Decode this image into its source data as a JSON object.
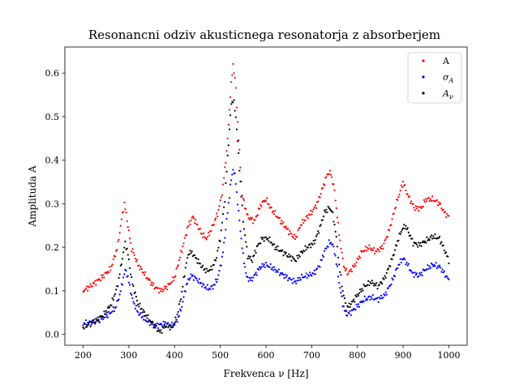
{
  "chart_data": {
    "type": "scatter",
    "title": "Resonancni odziv akusticnega resonatorja z absorberjem",
    "xlabel": "Frekvenca ν [Hz]",
    "ylabel": "Amplituda A",
    "xlim": [
      160,
      1040
    ],
    "ylim": [
      -0.025,
      0.66
    ],
    "xticks": [
      200,
      300,
      400,
      500,
      600,
      700,
      800,
      900,
      1000
    ],
    "yticks": [
      0.0,
      0.1,
      0.2,
      0.3,
      0.4,
      0.5,
      0.6
    ],
    "legend_position": "top-right",
    "grid": false,
    "x_range": [
      200,
      1000
    ],
    "x_step": 2,
    "series": [
      {
        "name": "A",
        "color": "#ff0000",
        "anchors": [
          [
            200,
            0.1
          ],
          [
            215,
            0.11
          ],
          [
            240,
            0.13
          ],
          [
            260,
            0.15
          ],
          [
            275,
            0.2
          ],
          [
            285,
            0.27
          ],
          [
            290,
            0.3
          ],
          [
            295,
            0.27
          ],
          [
            305,
            0.2
          ],
          [
            320,
            0.16
          ],
          [
            340,
            0.13
          ],
          [
            355,
            0.11
          ],
          [
            370,
            0.1
          ],
          [
            385,
            0.11
          ],
          [
            400,
            0.13
          ],
          [
            415,
            0.19
          ],
          [
            430,
            0.25
          ],
          [
            440,
            0.27
          ],
          [
            450,
            0.25
          ],
          [
            460,
            0.23
          ],
          [
            470,
            0.22
          ],
          [
            480,
            0.24
          ],
          [
            495,
            0.28
          ],
          [
            505,
            0.33
          ],
          [
            515,
            0.43
          ],
          [
            522,
            0.55
          ],
          [
            528,
            0.62
          ],
          [
            533,
            0.58
          ],
          [
            540,
            0.45
          ],
          [
            548,
            0.32
          ],
          [
            560,
            0.27
          ],
          [
            575,
            0.26
          ],
          [
            590,
            0.3
          ],
          [
            600,
            0.31
          ],
          [
            610,
            0.29
          ],
          [
            625,
            0.27
          ],
          [
            640,
            0.25
          ],
          [
            655,
            0.23
          ],
          [
            665,
            0.22
          ],
          [
            675,
            0.25
          ],
          [
            690,
            0.27
          ],
          [
            700,
            0.28
          ],
          [
            712,
            0.3
          ],
          [
            725,
            0.34
          ],
          [
            735,
            0.37
          ],
          [
            742,
            0.37
          ],
          [
            750,
            0.33
          ],
          [
            758,
            0.25
          ],
          [
            765,
            0.19
          ],
          [
            772,
            0.15
          ],
          [
            780,
            0.14
          ],
          [
            795,
            0.16
          ],
          [
            810,
            0.19
          ],
          [
            825,
            0.2
          ],
          [
            840,
            0.19
          ],
          [
            855,
            0.2
          ],
          [
            870,
            0.24
          ],
          [
            885,
            0.3
          ],
          [
            900,
            0.35
          ],
          [
            910,
            0.32
          ],
          [
            925,
            0.29
          ],
          [
            940,
            0.29
          ],
          [
            950,
            0.31
          ],
          [
            965,
            0.31
          ],
          [
            980,
            0.3
          ],
          [
            990,
            0.28
          ],
          [
            1000,
            0.27
          ]
        ]
      },
      {
        "name": "σ_A",
        "color": "#0000ff",
        "anchors": [
          [
            200,
            0.025
          ],
          [
            230,
            0.03
          ],
          [
            255,
            0.045
          ],
          [
            270,
            0.06
          ],
          [
            280,
            0.09
          ],
          [
            288,
            0.13
          ],
          [
            293,
            0.15
          ],
          [
            298,
            0.13
          ],
          [
            308,
            0.08
          ],
          [
            320,
            0.05
          ],
          [
            340,
            0.03
          ],
          [
            360,
            0.02
          ],
          [
            380,
            0.025
          ],
          [
            395,
            0.02
          ],
          [
            405,
            0.03
          ],
          [
            415,
            0.06
          ],
          [
            425,
            0.11
          ],
          [
            435,
            0.135
          ],
          [
            445,
            0.13
          ],
          [
            455,
            0.12
          ],
          [
            465,
            0.11
          ],
          [
            475,
            0.105
          ],
          [
            485,
            0.11
          ],
          [
            495,
            0.13
          ],
          [
            505,
            0.18
          ],
          [
            515,
            0.27
          ],
          [
            522,
            0.34
          ],
          [
            528,
            0.38
          ],
          [
            533,
            0.36
          ],
          [
            540,
            0.28
          ],
          [
            550,
            0.18
          ],
          [
            558,
            0.13
          ],
          [
            568,
            0.125
          ],
          [
            578,
            0.14
          ],
          [
            588,
            0.155
          ],
          [
            598,
            0.16
          ],
          [
            610,
            0.155
          ],
          [
            625,
            0.145
          ],
          [
            640,
            0.135
          ],
          [
            655,
            0.125
          ],
          [
            665,
            0.12
          ],
          [
            675,
            0.13
          ],
          [
            690,
            0.135
          ],
          [
            705,
            0.14
          ],
          [
            718,
            0.16
          ],
          [
            728,
            0.19
          ],
          [
            738,
            0.21
          ],
          [
            745,
            0.21
          ],
          [
            752,
            0.18
          ],
          [
            760,
            0.12
          ],
          [
            768,
            0.07
          ],
          [
            775,
            0.045
          ],
          [
            785,
            0.05
          ],
          [
            800,
            0.065
          ],
          [
            815,
            0.08
          ],
          [
            830,
            0.085
          ],
          [
            845,
            0.08
          ],
          [
            860,
            0.09
          ],
          [
            875,
            0.12
          ],
          [
            890,
            0.16
          ],
          [
            900,
            0.175
          ],
          [
            910,
            0.16
          ],
          [
            920,
            0.14
          ],
          [
            935,
            0.135
          ],
          [
            950,
            0.15
          ],
          [
            965,
            0.16
          ],
          [
            980,
            0.155
          ],
          [
            990,
            0.14
          ],
          [
            1000,
            0.125
          ]
        ]
      },
      {
        "name": "A_ν",
        "color": "#000000",
        "anchors": [
          [
            200,
            0.015
          ],
          [
            225,
            0.03
          ],
          [
            245,
            0.045
          ],
          [
            262,
            0.07
          ],
          [
            275,
            0.11
          ],
          [
            285,
            0.17
          ],
          [
            292,
            0.21
          ],
          [
            297,
            0.19
          ],
          [
            307,
            0.12
          ],
          [
            320,
            0.07
          ],
          [
            340,
            0.04
          ],
          [
            355,
            0.02
          ],
          [
            368,
            0.005
          ],
          [
            380,
            0.02
          ],
          [
            395,
            0.015
          ],
          [
            405,
            0.04
          ],
          [
            415,
            0.09
          ],
          [
            425,
            0.16
          ],
          [
            432,
            0.19
          ],
          [
            440,
            0.185
          ],
          [
            450,
            0.17
          ],
          [
            460,
            0.155
          ],
          [
            470,
            0.145
          ],
          [
            480,
            0.15
          ],
          [
            490,
            0.17
          ],
          [
            500,
            0.22
          ],
          [
            510,
            0.31
          ],
          [
            518,
            0.44
          ],
          [
            524,
            0.53
          ],
          [
            529,
            0.54
          ],
          [
            535,
            0.49
          ],
          [
            542,
            0.38
          ],
          [
            550,
            0.26
          ],
          [
            560,
            0.18
          ],
          [
            570,
            0.17
          ],
          [
            580,
            0.2
          ],
          [
            592,
            0.22
          ],
          [
            605,
            0.22
          ],
          [
            620,
            0.2
          ],
          [
            635,
            0.19
          ],
          [
            650,
            0.18
          ],
          [
            665,
            0.17
          ],
          [
            675,
            0.185
          ],
          [
            690,
            0.2
          ],
          [
            705,
            0.21
          ],
          [
            718,
            0.245
          ],
          [
            728,
            0.28
          ],
          [
            737,
            0.29
          ],
          [
            744,
            0.285
          ],
          [
            752,
            0.24
          ],
          [
            760,
            0.16
          ],
          [
            768,
            0.1
          ],
          [
            776,
            0.06
          ],
          [
            786,
            0.07
          ],
          [
            800,
            0.09
          ],
          [
            815,
            0.11
          ],
          [
            830,
            0.12
          ],
          [
            845,
            0.11
          ],
          [
            860,
            0.13
          ],
          [
            875,
            0.17
          ],
          [
            890,
            0.22
          ],
          [
            897,
            0.24
          ],
          [
            905,
            0.25
          ],
          [
            912,
            0.235
          ],
          [
            922,
            0.21
          ],
          [
            935,
            0.205
          ],
          [
            950,
            0.215
          ],
          [
            965,
            0.225
          ],
          [
            980,
            0.22
          ],
          [
            992,
            0.19
          ],
          [
            1000,
            0.17
          ]
        ]
      }
    ]
  }
}
